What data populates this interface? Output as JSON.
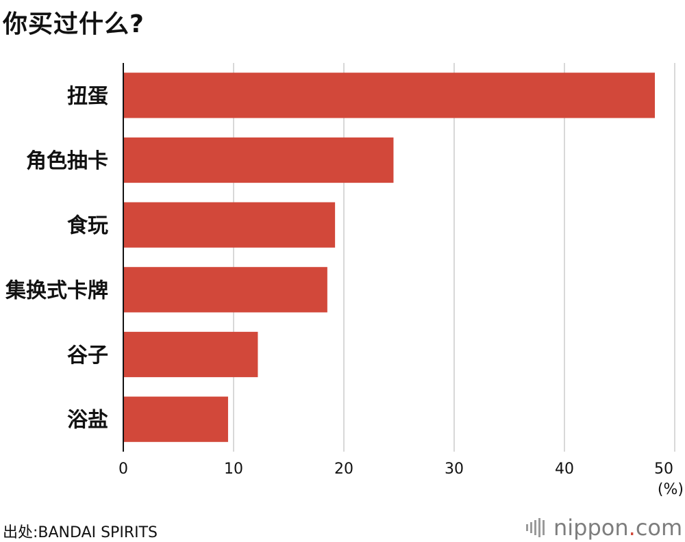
{
  "title": "你买过什么?",
  "source": "出处:BANDAI SPIRITS",
  "logo": {
    "name": "nippon",
    "dot": ".",
    "tld": "com"
  },
  "colors": {
    "bar": "#d2483a",
    "grid": "#cccccc",
    "axis": "#111111"
  },
  "chart_data": {
    "type": "bar",
    "orientation": "horizontal",
    "categories": [
      "扭蛋",
      "角色抽卡",
      "食玩",
      "集换式卡牌",
      "谷子",
      "浴盐"
    ],
    "values": [
      48.2,
      24.5,
      19.2,
      18.5,
      12.2,
      9.5
    ],
    "xlim": [
      0,
      50
    ],
    "xticks": [
      0,
      10,
      20,
      30,
      40,
      50
    ],
    "unit": "(%)",
    "grid": true
  }
}
